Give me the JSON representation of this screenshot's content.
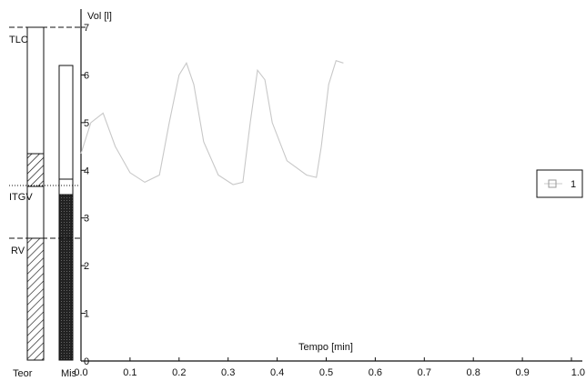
{
  "chart_data": [
    {
      "type": "line",
      "title": "",
      "xlabel": "Tempo [min]",
      "ylabel": "Vol [l]",
      "xlim": [
        0.0,
        1.0
      ],
      "ylim": [
        0,
        7
      ],
      "xticks": [
        "0.0",
        "0.1",
        "0.2",
        "0.3",
        "0.4",
        "0.5",
        "0.6",
        "0.7",
        "0.8",
        "0.9",
        "1.0"
      ],
      "yticks": [
        "0",
        "1",
        "2",
        "3",
        "4",
        "5",
        "6",
        "7"
      ],
      "grid": false,
      "legend": {
        "position": "right",
        "entries": [
          "1"
        ]
      },
      "series": [
        {
          "name": "1",
          "color": "#c8c8c8",
          "points": [
            [
              0.0,
              4.35
            ],
            [
              0.02,
              5.0
            ],
            [
              0.045,
              5.2
            ],
            [
              0.07,
              4.5
            ],
            [
              0.1,
              3.95
            ],
            [
              0.13,
              3.75
            ],
            [
              0.16,
              3.9
            ],
            [
              0.18,
              5.0
            ],
            [
              0.2,
              6.0
            ],
            [
              0.215,
              6.25
            ],
            [
              0.23,
              5.8
            ],
            [
              0.25,
              4.6
            ],
            [
              0.28,
              3.9
            ],
            [
              0.31,
              3.7
            ],
            [
              0.33,
              3.75
            ],
            [
              0.345,
              5.0
            ],
            [
              0.36,
              6.1
            ],
            [
              0.375,
              5.9
            ],
            [
              0.39,
              5.0
            ],
            [
              0.42,
              4.2
            ],
            [
              0.46,
              3.9
            ],
            [
              0.48,
              3.85
            ],
            [
              0.49,
              4.5
            ],
            [
              0.505,
              5.8
            ],
            [
              0.52,
              6.3
            ],
            [
              0.535,
              6.25
            ]
          ]
        }
      ]
    },
    {
      "type": "bar",
      "title": "",
      "categories": [
        "Teor",
        "Mis"
      ],
      "ylim": [
        0,
        7
      ],
      "level_labels": [
        "TLC",
        "ITGV",
        "RV"
      ],
      "levels": {
        "TLC": 7.1,
        "ITGV": 3.7,
        "RV": 2.6
      },
      "bars": [
        {
          "category": "Teor",
          "total": 7.1,
          "hatched_from": 0,
          "hatched_to": 2.6,
          "hatched_band_from": 3.7,
          "hatched_band_to": 4.4
        },
        {
          "category": "Mis",
          "total": 6.25,
          "filled_from": 0,
          "filled_to": 3.5,
          "band_to": 3.9
        }
      ]
    }
  ]
}
